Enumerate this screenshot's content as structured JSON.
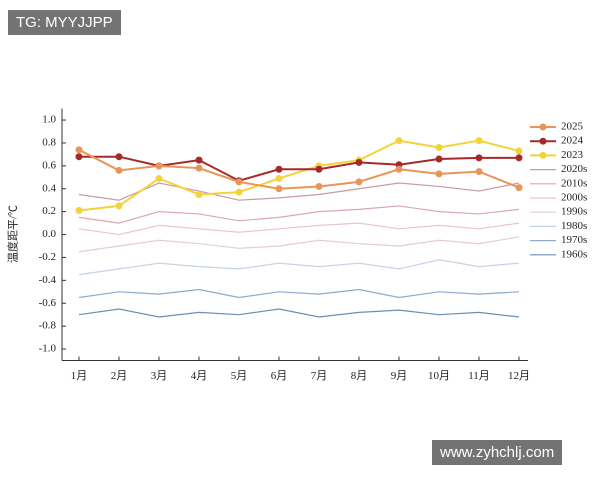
{
  "chart_data": {
    "type": "line",
    "ylabel": "温度距平/℃",
    "categories": [
      "1月",
      "2月",
      "3月",
      "4月",
      "5月",
      "6月",
      "7月",
      "8月",
      "9月",
      "10月",
      "11月",
      "12月"
    ],
    "ylim": [
      -1.1,
      1.1
    ],
    "yticks": [
      {
        "value": 1,
        "label": "1.0"
      },
      0.8,
      0.6,
      0.4,
      0.2,
      {
        "value": 0,
        "label": "0.0"
      },
      -0.2,
      -0.4,
      -0.6,
      -0.8,
      {
        "value": -1,
        "label": "-1.0"
      }
    ],
    "series": [
      {
        "name": "2025",
        "color": "#e8955a",
        "values": [
          0.74,
          0.56,
          0.6,
          0.58,
          0.46,
          0.4,
          0.42,
          0.46,
          0.57,
          0.53,
          0.55,
          0.41
        ]
      },
      {
        "name": "2024",
        "color": "#a52a2a",
        "values": [
          0.68,
          0.68,
          0.6,
          0.65,
          0.47,
          0.57,
          0.57,
          0.63,
          0.61,
          0.66,
          0.67,
          0.67
        ]
      },
      {
        "name": "2023",
        "color": "#f2d33a",
        "values": [
          0.21,
          0.25,
          0.49,
          0.35,
          0.37,
          0.49,
          0.6,
          0.65,
          0.82,
          0.76,
          0.82,
          0.73
        ]
      },
      {
        "name": "2020s",
        "color": "#c99aa4",
        "values": [
          0.35,
          0.3,
          0.45,
          0.38,
          0.3,
          0.32,
          0.35,
          0.4,
          0.45,
          0.42,
          0.38,
          0.45
        ]
      },
      {
        "name": "2010s",
        "color": "#dca8b2",
        "values": [
          0.15,
          0.1,
          0.2,
          0.18,
          0.12,
          0.15,
          0.2,
          0.22,
          0.25,
          0.2,
          0.18,
          0.22
        ]
      },
      {
        "name": "2000s",
        "color": "#eec4c8",
        "values": [
          0.05,
          0,
          0.08,
          0.05,
          0.02,
          0.05,
          0.08,
          0.1,
          0.05,
          0.08,
          0.05,
          0.1
        ]
      },
      {
        "name": "1990s",
        "color": "#e4ccd6",
        "values": [
          -0.15,
          -0.1,
          -0.05,
          -0.08,
          -0.12,
          -0.1,
          -0.05,
          -0.08,
          -0.1,
          -0.05,
          -0.08,
          -0.02
        ]
      },
      {
        "name": "1980s",
        "color": "#c4d2e4",
        "values": [
          -0.35,
          -0.3,
          -0.25,
          -0.28,
          -0.3,
          -0.25,
          -0.28,
          -0.25,
          -0.3,
          -0.22,
          -0.28,
          -0.25
        ]
      },
      {
        "name": "1970s",
        "color": "#8eaacf",
        "values": [
          -0.55,
          -0.5,
          -0.52,
          -0.48,
          -0.55,
          -0.5,
          -0.52,
          -0.48,
          -0.55,
          -0.5,
          -0.52,
          -0.5
        ]
      },
      {
        "name": "1960s",
        "color": "#6a8fb6",
        "values": [
          -0.7,
          -0.65,
          -0.72,
          -0.68,
          -0.7,
          -0.65,
          -0.72,
          -0.68,
          -0.66,
          -0.7,
          -0.68,
          -0.72
        ]
      }
    ],
    "markers": 3
  },
  "watermarks": {
    "top": "TG: MYYJJPP",
    "bottom": "www.zyhchlj.com"
  }
}
